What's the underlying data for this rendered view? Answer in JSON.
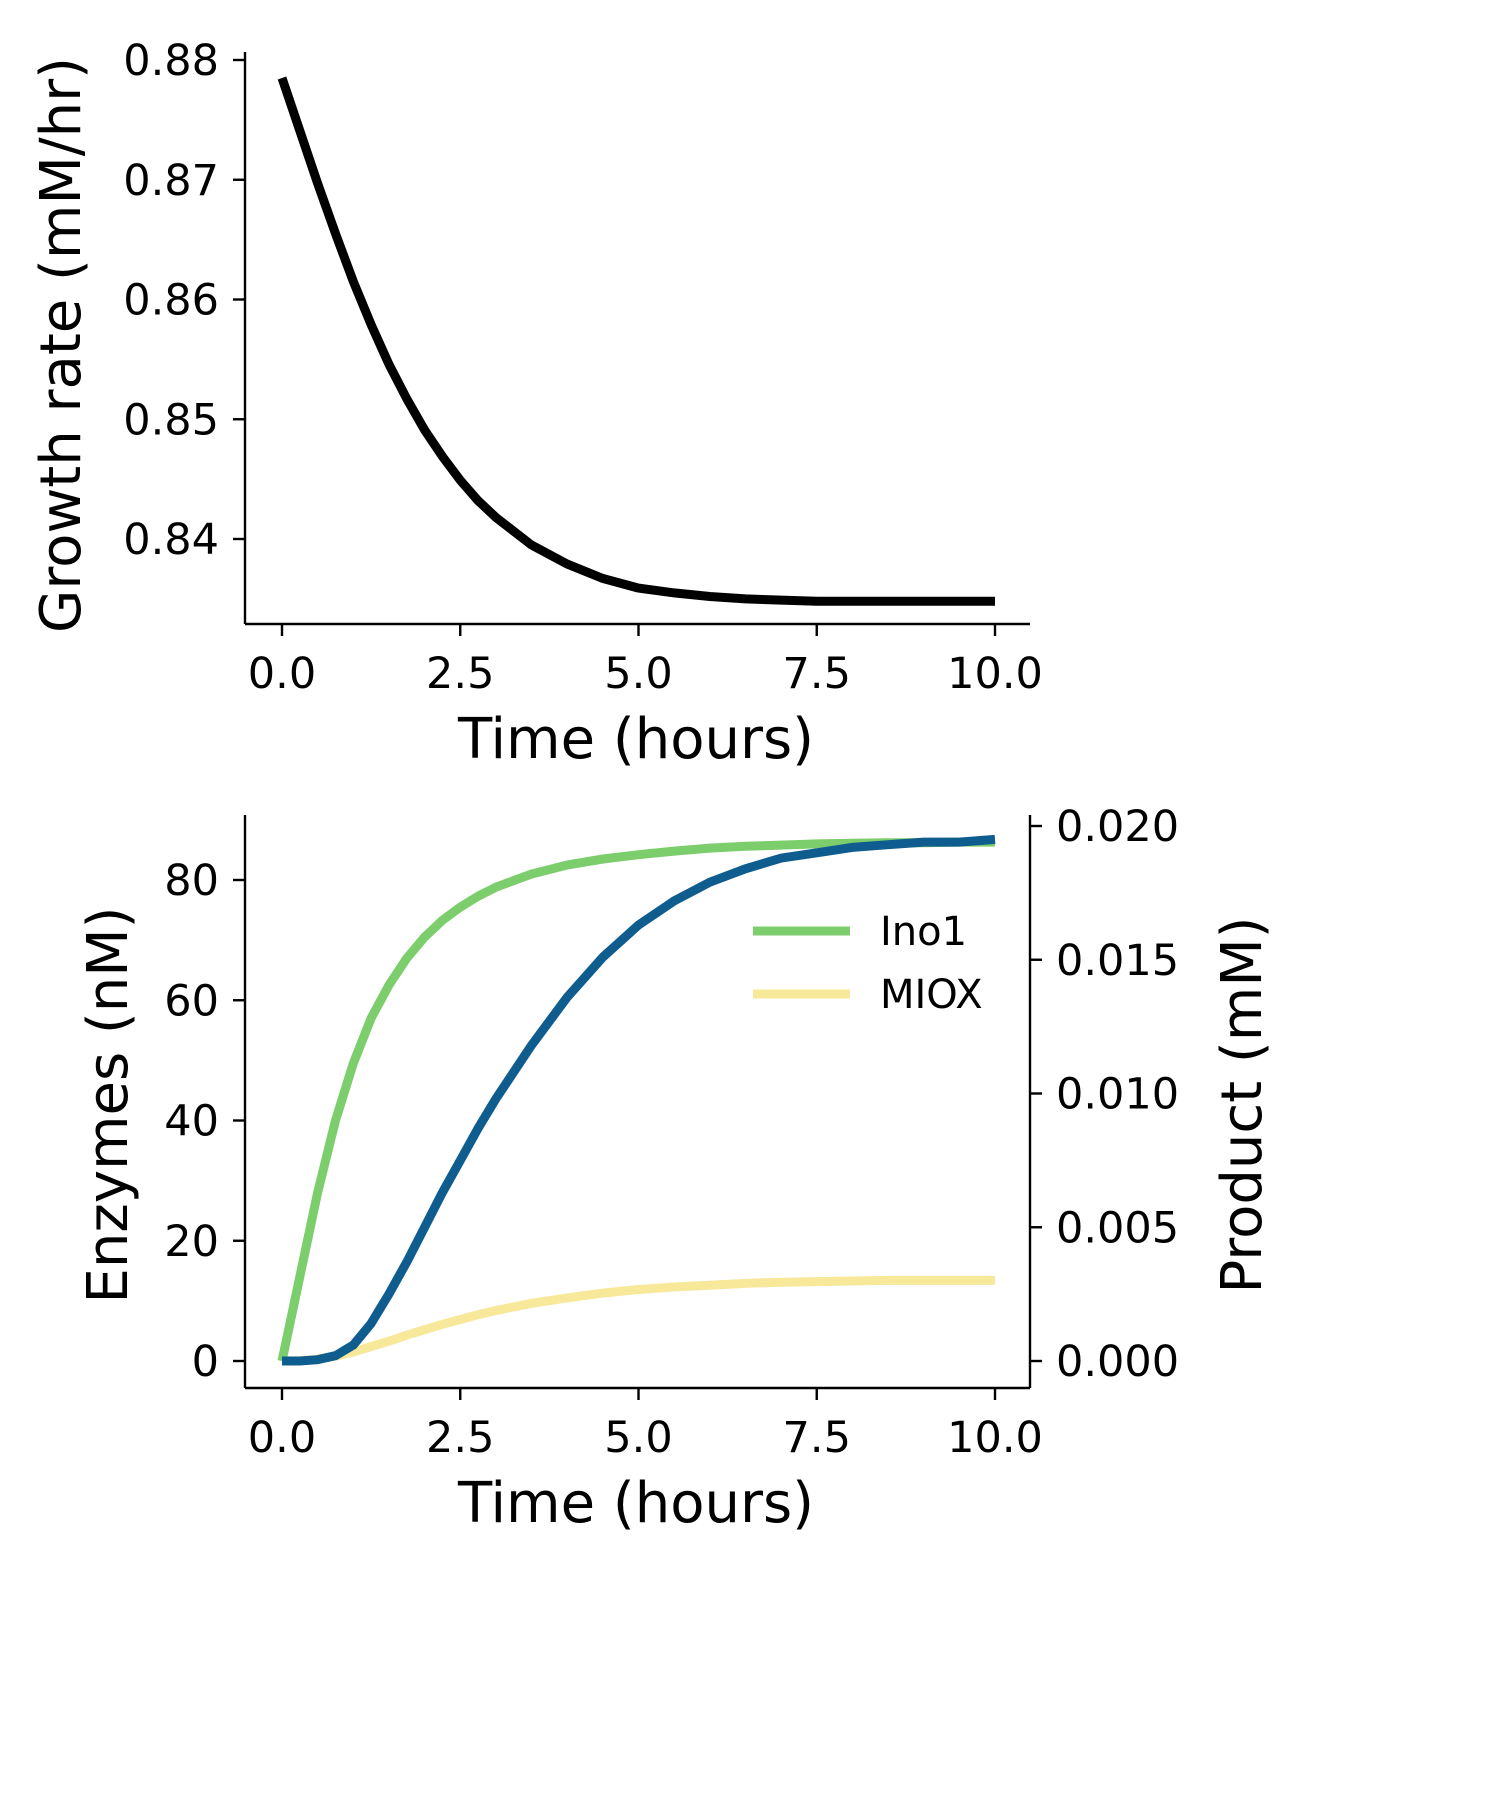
{
  "chart_data": [
    {
      "type": "line",
      "xlabel": "Time (hours)",
      "ylabel": "Growth rate (mM/hr)",
      "xlim": [
        -0.5,
        10.5
      ],
      "ylim": [
        0.8328,
        0.8805
      ],
      "xticks": [
        "0.0",
        "2.5",
        "5.0",
        "7.5",
        "10.0"
      ],
      "yticks": [
        "0.84",
        "0.85",
        "0.86",
        "0.87",
        "0.88"
      ],
      "grid": false,
      "series": [
        {
          "color": "#000000",
          "x": [
            0,
            0.25,
            0.5,
            0.75,
            1,
            1.25,
            1.5,
            1.75,
            2,
            2.25,
            2.5,
            2.75,
            3,
            3.5,
            4,
            4.5,
            5,
            5.5,
            6,
            6.5,
            7,
            7.5,
            8,
            8.5,
            9,
            9.5,
            10
          ],
          "y": [
            0.8785,
            0.8741,
            0.8697,
            0.8655,
            0.8615,
            0.8579,
            0.8546,
            0.8517,
            0.8491,
            0.8469,
            0.8449,
            0.8432,
            0.8418,
            0.8395,
            0.8379,
            0.8367,
            0.8359,
            0.8355,
            0.8352,
            0.835,
            0.8349,
            0.8348,
            0.8348,
            0.8348,
            0.8348,
            0.8348,
            0.8348
          ]
        }
      ]
    },
    {
      "type": "line",
      "xlabel": "Time (hours)",
      "ylabel": "Enzymes (nM)",
      "y2label": "Product (mM)",
      "xlim": [
        -0.5,
        10.5
      ],
      "ylim": [
        -4.3,
        90.7
      ],
      "y2lim": [
        -0.001,
        0.0205
      ],
      "xticks": [
        "0.0",
        "2.5",
        "5.0",
        "7.5",
        "10.0"
      ],
      "yticks": [
        "0",
        "20",
        "40",
        "60",
        "80"
      ],
      "y2ticks": [
        "0.000",
        "0.005",
        "0.010",
        "0.015",
        "0.020"
      ],
      "grid": false,
      "legend_position": "upper-right",
      "series": [
        {
          "name": "Ino1",
          "axis": "left",
          "color": "#7ccd6c",
          "x": [
            0,
            0.25,
            0.5,
            0.75,
            1,
            1.25,
            1.5,
            1.75,
            2,
            2.25,
            2.5,
            2.75,
            3,
            3.5,
            4,
            4.5,
            5,
            5.5,
            6,
            6.5,
            7,
            7.5,
            8,
            8.5,
            9,
            9.5,
            10
          ],
          "y": [
            0,
            14,
            28,
            40,
            49.5,
            57,
            62.5,
            67,
            70.5,
            73.3,
            75.5,
            77.3,
            78.8,
            81,
            82.5,
            83.5,
            84.2,
            84.8,
            85.3,
            85.6,
            85.8,
            86.0,
            86.1,
            86.2,
            86.2,
            86.3,
            86.3
          ]
        },
        {
          "name": "MIOX",
          "axis": "left",
          "color": "#f8e899",
          "x": [
            0,
            0.25,
            0.5,
            0.75,
            1,
            1.25,
            1.5,
            1.75,
            2,
            2.25,
            2.5,
            2.75,
            3,
            3.5,
            4,
            4.5,
            5,
            5.5,
            6,
            6.5,
            7,
            7.5,
            8,
            8.5,
            9,
            9.5,
            10
          ],
          "y": [
            0,
            0.05,
            0.3,
            0.8,
            1.5,
            2.4,
            3.3,
            4.3,
            5.2,
            6.1,
            6.9,
            7.7,
            8.4,
            9.6,
            10.5,
            11.3,
            11.9,
            12.3,
            12.6,
            12.9,
            13.1,
            13.2,
            13.3,
            13.4,
            13.4,
            13.4,
            13.4
          ]
        },
        {
          "axis": "right",
          "color": "#0f5c8f",
          "x": [
            0,
            0.25,
            0.5,
            0.75,
            1,
            1.25,
            1.5,
            1.75,
            2,
            2.25,
            2.5,
            2.75,
            3,
            3.5,
            4,
            4.5,
            5,
            5.5,
            6,
            6.5,
            7,
            7.5,
            8,
            8.5,
            9,
            9.5,
            10
          ],
          "y": [
            0,
            0,
            5e-05,
            0.0002,
            0.0006,
            0.0014,
            0.0025,
            0.0037,
            0.005,
            0.0063,
            0.0075,
            0.0087,
            0.0098,
            0.0118,
            0.0136,
            0.0151,
            0.0163,
            0.0172,
            0.0179,
            0.0184,
            0.0188,
            0.019,
            0.0192,
            0.0193,
            0.0194,
            0.0194,
            0.0195
          ]
        }
      ]
    }
  ]
}
